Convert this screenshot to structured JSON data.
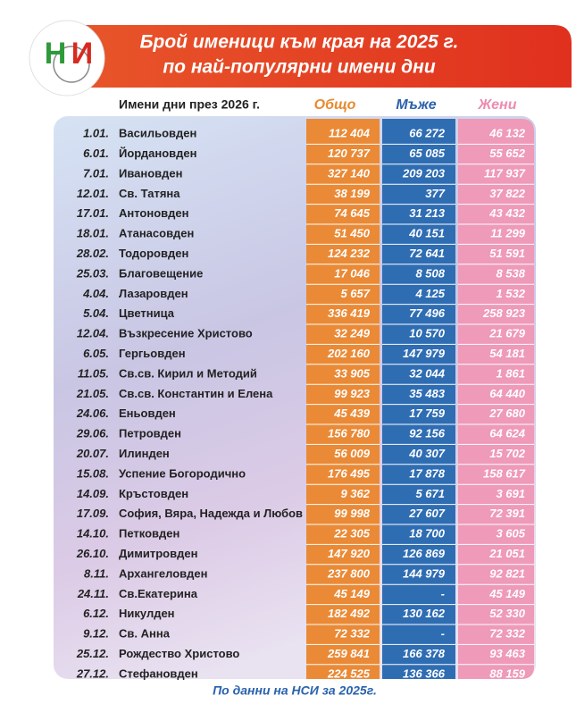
{
  "header": {
    "title": [
      "Брой именици към края на 2025 г.",
      "по най-популярни имени дни"
    ],
    "logo": [
      "Н",
      "И"
    ]
  },
  "table": {
    "columns": [
      "Имени дни през 2026 г.",
      "Общо",
      "Мъже",
      "Жени"
    ],
    "rows": [
      [
        "1.01.",
        "Васильовден",
        "112 404",
        "66 272",
        "46 132"
      ],
      [
        "6.01.",
        "Йордановден",
        "120 737",
        "65 085",
        "55 652"
      ],
      [
        "7.01.",
        "Ивановден",
        "327 140",
        "209 203",
        "117 937"
      ],
      [
        "12.01.",
        "Св. Татяна",
        "38 199",
        "377",
        "37 822"
      ],
      [
        "17.01.",
        "Антоновден",
        "74 645",
        "31 213",
        "43 432"
      ],
      [
        "18.01.",
        "Атанасовден",
        "51 450",
        "40 151",
        "11 299"
      ],
      [
        "28.02.",
        "Тодоровден",
        "124 232",
        "72 641",
        "51 591"
      ],
      [
        "25.03.",
        "Благовещение",
        "17 046",
        "8 508",
        "8 538"
      ],
      [
        "4.04.",
        "Лазаровден",
        "5 657",
        "4 125",
        "1 532"
      ],
      [
        "5.04.",
        "Цветница",
        "336 419",
        "77 496",
        "258 923"
      ],
      [
        "12.04.",
        "Възкресение Христово",
        "32 249",
        "10 570",
        "21 679"
      ],
      [
        "6.05.",
        "Гергьовден",
        "202 160",
        "147 979",
        "54 181"
      ],
      [
        "11.05.",
        "Св.св. Кирил и Методий",
        "33 905",
        "32 044",
        "1 861"
      ],
      [
        "21.05.",
        "Св.св. Константин и Елена",
        "99 923",
        "35 483",
        "64 440"
      ],
      [
        "24.06.",
        "Еньовден",
        "45 439",
        "17 759",
        "27 680"
      ],
      [
        "29.06.",
        "Петровден",
        "156 780",
        "92 156",
        "64 624"
      ],
      [
        "20.07.",
        "Илинден",
        "56 009",
        "40 307",
        "15 702"
      ],
      [
        "15.08.",
        "Успение Богородично",
        "176 495",
        "17 878",
        "158 617"
      ],
      [
        "14.09.",
        "Кръстовден",
        "9 362",
        "5 671",
        "3 691"
      ],
      [
        "17.09.",
        "София, Вяра, Надежда и Любов",
        "99 998",
        "27 607",
        "72 391"
      ],
      [
        "14.10.",
        "Петковден",
        "22 305",
        "18 700",
        "3 605"
      ],
      [
        "26.10.",
        "Димитровден",
        "147 920",
        "126 869",
        "21 051"
      ],
      [
        "8.11.",
        "Архангеловден",
        "237 800",
        "144 979",
        "92 821"
      ],
      [
        "24.11.",
        "Св.Екатерина",
        "45 149",
        "-",
        "45 149"
      ],
      [
        "6.12.",
        "Никулден",
        "182 492",
        "130 162",
        "52 330"
      ],
      [
        "9.12.",
        "Св. Анна",
        "72 332",
        "-",
        "72 332"
      ],
      [
        "25.12.",
        "Рождество Христово",
        "259 841",
        "166 378",
        "93 463"
      ],
      [
        "27.12.",
        "Стефановден",
        "224 525",
        "136 366",
        "88 159"
      ]
    ]
  },
  "footer": "По данни на НСИ за 2025г."
}
